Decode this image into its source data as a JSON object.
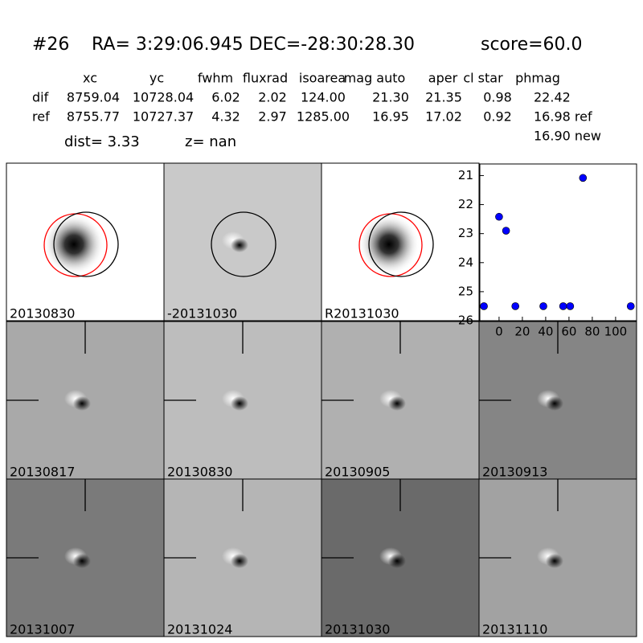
{
  "header": {
    "id": "#26",
    "coords": "RA= 3:29:06.945 DEC=-28:30:28.30",
    "score": "score=60.0"
  },
  "table": {
    "columns": [
      "xc",
      "yc",
      "fwhm",
      "fluxrad",
      "isoarea",
      "mag auto",
      "aper",
      "cl star",
      "phmag"
    ],
    "rows": [
      [
        "dif",
        "8759.04",
        "10728.04",
        "6.02",
        "2.02",
        "124.00",
        "21.30",
        "21.35",
        "0.98",
        "22.42"
      ],
      [
        "ref",
        "8755.77",
        "10727.37",
        "4.32",
        "2.97",
        "1285.00",
        "16.95",
        "17.02",
        "0.92",
        "16.98 ref"
      ]
    ],
    "extra": "16.90 new"
  },
  "dist": "dist=  3.33",
  "z": "z=   nan",
  "panels": [
    {
      "label": "20130830"
    },
    {
      "label": "-20131030"
    },
    {
      "label": "R20131030"
    },
    {
      "label": "20130817"
    },
    {
      "label": "20130830",
      "color": "#ff0000"
    },
    {
      "label": "20130905"
    },
    {
      "label": "20130913"
    },
    {
      "label": "20131007"
    },
    {
      "label": "20131024"
    },
    {
      "label": "20131030"
    },
    {
      "label": "20131110"
    }
  ],
  "chart_data": {
    "type": "scatter",
    "x": [
      -13,
      0,
      6,
      14,
      38,
      55,
      61,
      72,
      113
    ],
    "values": [
      25.5,
      22.42,
      22.9,
      25.5,
      25.5,
      25.5,
      25.5,
      21.08,
      25.5
    ],
    "errors": [
      0.05,
      0.06,
      0.12,
      0.05,
      0.05,
      0.05,
      0.05,
      0.05,
      0.05
    ],
    "color": "#0000ff",
    "xlim": [
      -16.5,
      118
    ],
    "ylim": [
      26,
      20.6
    ],
    "xticks": [
      0,
      20,
      40,
      60,
      80,
      100
    ],
    "yticks": [
      21,
      22,
      23,
      24,
      25,
      26
    ]
  }
}
